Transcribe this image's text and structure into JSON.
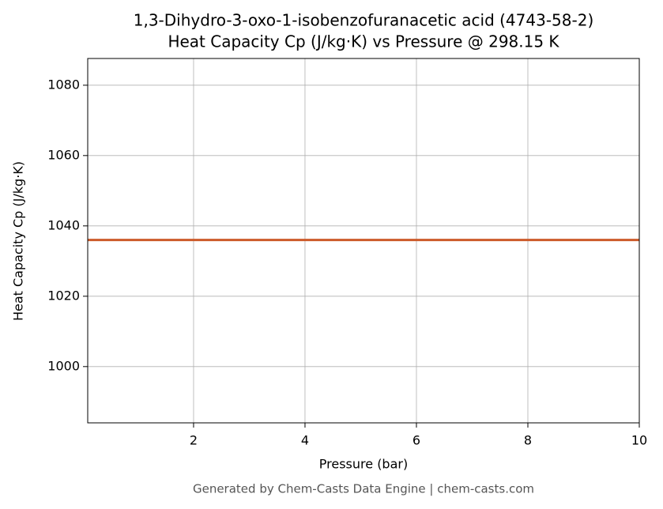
{
  "chart_data": {
    "type": "line",
    "title": "1,3-Dihydro-3-oxo-1-isobenzofuranacetic acid (4743-58-2)",
    "subtitle": "Heat Capacity Cp (J/kg·K) vs Pressure @ 298.15 K",
    "x_label": "Pressure (bar)",
    "y_label": "Heat Capacity Cp (J/kg·K)",
    "footer": "Generated by Chem-Casts Data Engine | chem-casts.com",
    "x": [
      0.1,
      10
    ],
    "series": [
      {
        "name": "Cp",
        "color": "#cc5a2a",
        "values": [
          1036,
          1036
        ]
      }
    ],
    "xlim": [
      0.1,
      10
    ],
    "xticks": [
      2,
      4,
      6,
      8,
      10
    ],
    "ylim": [
      984,
      1087.6
    ],
    "yticks": [
      1000,
      1020,
      1040,
      1060,
      1080
    ],
    "grid": true
  }
}
